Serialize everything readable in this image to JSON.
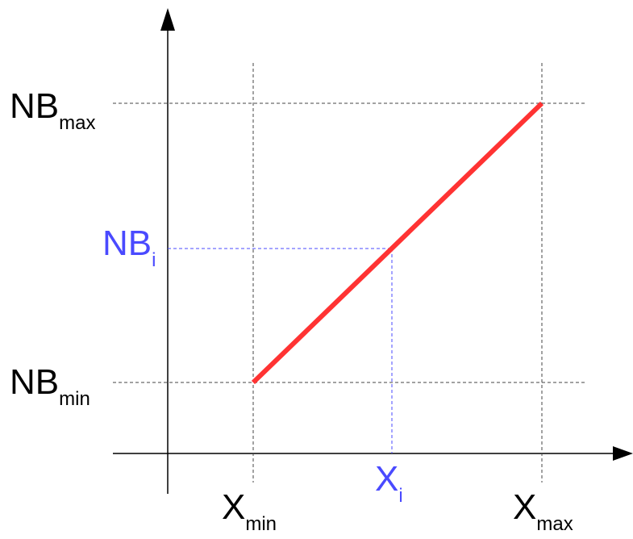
{
  "colors": {
    "axis": "#000000",
    "guide": "#555555",
    "highlight": "#4a4aff",
    "line": "#ff3333"
  },
  "y_labels": {
    "max": {
      "main": "NB",
      "sub": "max"
    },
    "i": {
      "main": "NB",
      "sub": "i"
    },
    "min": {
      "main": "NB",
      "sub": "min"
    }
  },
  "x_labels": {
    "min": {
      "main": "X",
      "sub": "min"
    },
    "i": {
      "main": "X",
      "sub": "i"
    },
    "max": {
      "main": "X",
      "sub": "max"
    }
  }
}
